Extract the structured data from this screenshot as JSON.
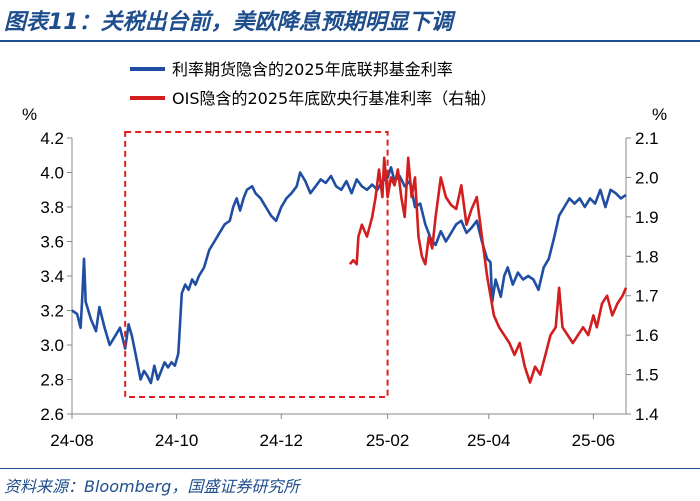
{
  "header": {
    "title": "图表11：关税出台前，美欧降息预期明显下调"
  },
  "footer": {
    "source": "资料来源：Bloomberg，国盛证券研究所"
  },
  "chart_data": {
    "type": "line",
    "y_left_unit": "%",
    "y_right_unit": "%",
    "y_left_lim": [
      2.6,
      4.2
    ],
    "y_right_lim": [
      1.4,
      2.1
    ],
    "y_left_ticks": [
      "2.6",
      "2.8",
      "3.0",
      "3.2",
      "3.4",
      "3.6",
      "3.8",
      "4.0",
      "4.2"
    ],
    "y_right_ticks": [
      "1.4",
      "1.5",
      "1.6",
      "1.7",
      "1.8",
      "1.9",
      "2.0",
      "2.1"
    ],
    "x_lim": [
      "2024-08-01",
      "2025-06-20"
    ],
    "x_ticks": [
      {
        "date": "2024-08-01",
        "label": "24-08"
      },
      {
        "date": "2024-10-01",
        "label": "24-10"
      },
      {
        "date": "2024-12-01",
        "label": "24-12"
      },
      {
        "date": "2025-02-01",
        "label": "25-02"
      },
      {
        "date": "2025-04-01",
        "label": "25-04"
      },
      {
        "date": "2025-06-01",
        "label": "25-06"
      }
    ],
    "highlight_box": {
      "x_start": "2024-09-01",
      "x_end": "2025-02-01",
      "color": "#e02020"
    },
    "series": [
      {
        "name": "利率期货隐含的2025年底联邦基金利率",
        "axis": "left",
        "color": "#1f4ea3",
        "points": [
          [
            "2024-08-01",
            3.2
          ],
          [
            "2024-08-04",
            3.18
          ],
          [
            "2024-08-06",
            3.1
          ],
          [
            "2024-08-07",
            3.28
          ],
          [
            "2024-08-08",
            3.5
          ],
          [
            "2024-08-09",
            3.25
          ],
          [
            "2024-08-12",
            3.15
          ],
          [
            "2024-08-15",
            3.08
          ],
          [
            "2024-08-17",
            3.22
          ],
          [
            "2024-08-20",
            3.1
          ],
          [
            "2024-08-23",
            3.0
          ],
          [
            "2024-08-26",
            3.05
          ],
          [
            "2024-08-29",
            3.1
          ],
          [
            "2024-09-01",
            2.98
          ],
          [
            "2024-09-03",
            3.12
          ],
          [
            "2024-09-05",
            3.05
          ],
          [
            "2024-09-07",
            2.95
          ],
          [
            "2024-09-09",
            2.85
          ],
          [
            "2024-09-10",
            2.8
          ],
          [
            "2024-09-12",
            2.85
          ],
          [
            "2024-09-14",
            2.82
          ],
          [
            "2024-09-16",
            2.78
          ],
          [
            "2024-09-18",
            2.88
          ],
          [
            "2024-09-20",
            2.8
          ],
          [
            "2024-09-22",
            2.85
          ],
          [
            "2024-09-24",
            2.9
          ],
          [
            "2024-09-26",
            2.87
          ],
          [
            "2024-09-28",
            2.9
          ],
          [
            "2024-09-30",
            2.88
          ],
          [
            "2024-10-02",
            2.95
          ],
          [
            "2024-10-04",
            3.3
          ],
          [
            "2024-10-06",
            3.35
          ],
          [
            "2024-10-08",
            3.32
          ],
          [
            "2024-10-10",
            3.38
          ],
          [
            "2024-10-12",
            3.35
          ],
          [
            "2024-10-14",
            3.4
          ],
          [
            "2024-10-17",
            3.45
          ],
          [
            "2024-10-20",
            3.55
          ],
          [
            "2024-10-23",
            3.6
          ],
          [
            "2024-10-26",
            3.65
          ],
          [
            "2024-10-29",
            3.7
          ],
          [
            "2024-11-01",
            3.72
          ],
          [
            "2024-11-03",
            3.8
          ],
          [
            "2024-11-05",
            3.85
          ],
          [
            "2024-11-07",
            3.78
          ],
          [
            "2024-11-09",
            3.85
          ],
          [
            "2024-11-11",
            3.9
          ],
          [
            "2024-11-14",
            3.92
          ],
          [
            "2024-11-16",
            3.88
          ],
          [
            "2024-11-19",
            3.85
          ],
          [
            "2024-11-22",
            3.8
          ],
          [
            "2024-11-25",
            3.75
          ],
          [
            "2024-11-28",
            3.72
          ],
          [
            "2024-12-01",
            3.8
          ],
          [
            "2024-12-04",
            3.85
          ],
          [
            "2024-12-07",
            3.88
          ],
          [
            "2024-12-10",
            3.92
          ],
          [
            "2024-12-12",
            4.0
          ],
          [
            "2024-12-15",
            3.95
          ],
          [
            "2024-12-18",
            3.88
          ],
          [
            "2024-12-21",
            3.92
          ],
          [
            "2024-12-24",
            3.96
          ],
          [
            "2024-12-27",
            3.94
          ],
          [
            "2024-12-30",
            3.98
          ],
          [
            "2025-01-02",
            3.92
          ],
          [
            "2025-01-05",
            3.9
          ],
          [
            "2025-01-08",
            3.95
          ],
          [
            "2025-01-11",
            3.88
          ],
          [
            "2025-01-14",
            3.96
          ],
          [
            "2025-01-17",
            3.92
          ],
          [
            "2025-01-20",
            3.9
          ],
          [
            "2025-01-23",
            3.93
          ],
          [
            "2025-01-26",
            3.9
          ],
          [
            "2025-01-29",
            3.95
          ],
          [
            "2025-02-01",
            3.97
          ],
          [
            "2025-02-03",
            4.03
          ],
          [
            "2025-02-05",
            3.95
          ],
          [
            "2025-02-08",
            3.98
          ],
          [
            "2025-02-11",
            3.92
          ],
          [
            "2025-02-14",
            3.95
          ],
          [
            "2025-02-17",
            3.8
          ],
          [
            "2025-02-20",
            3.82
          ],
          [
            "2025-02-23",
            3.7
          ],
          [
            "2025-02-26",
            3.62
          ],
          [
            "2025-03-01",
            3.58
          ],
          [
            "2025-03-04",
            3.66
          ],
          [
            "2025-03-07",
            3.6
          ],
          [
            "2025-03-10",
            3.65
          ],
          [
            "2025-03-13",
            3.7
          ],
          [
            "2025-03-16",
            3.72
          ],
          [
            "2025-03-19",
            3.65
          ],
          [
            "2025-03-22",
            3.68
          ],
          [
            "2025-03-25",
            3.72
          ],
          [
            "2025-03-28",
            3.6
          ],
          [
            "2025-03-31",
            3.5
          ],
          [
            "2025-04-02",
            3.48
          ],
          [
            "2025-04-03",
            3.25
          ],
          [
            "2025-04-05",
            3.38
          ],
          [
            "2025-04-08",
            3.28
          ],
          [
            "2025-04-10",
            3.4
          ],
          [
            "2025-04-12",
            3.45
          ],
          [
            "2025-04-15",
            3.35
          ],
          [
            "2025-04-18",
            3.42
          ],
          [
            "2025-04-21",
            3.38
          ],
          [
            "2025-04-24",
            3.4
          ],
          [
            "2025-04-27",
            3.38
          ],
          [
            "2025-04-30",
            3.32
          ],
          [
            "2025-05-03",
            3.45
          ],
          [
            "2025-05-06",
            3.5
          ],
          [
            "2025-05-09",
            3.62
          ],
          [
            "2025-05-12",
            3.75
          ],
          [
            "2025-05-15",
            3.8
          ],
          [
            "2025-05-18",
            3.85
          ],
          [
            "2025-05-21",
            3.82
          ],
          [
            "2025-05-24",
            3.85
          ],
          [
            "2025-05-27",
            3.8
          ],
          [
            "2025-05-30",
            3.85
          ],
          [
            "2025-06-02",
            3.82
          ],
          [
            "2025-06-05",
            3.9
          ],
          [
            "2025-06-08",
            3.8
          ],
          [
            "2025-06-11",
            3.9
          ],
          [
            "2025-06-14",
            3.88
          ],
          [
            "2025-06-17",
            3.85
          ],
          [
            "2025-06-20",
            3.87
          ]
        ]
      },
      {
        "name": "OIS隐含的2025年底欧央行基准利率（右轴）",
        "axis": "right",
        "color": "#d21e1e",
        "points": [
          [
            "2025-01-10",
            1.78
          ],
          [
            "2025-01-12",
            1.79
          ],
          [
            "2025-01-14",
            1.78
          ],
          [
            "2025-01-15",
            1.85
          ],
          [
            "2025-01-17",
            1.88
          ],
          [
            "2025-01-20",
            1.85
          ],
          [
            "2025-01-23",
            1.9
          ],
          [
            "2025-01-25",
            1.95
          ],
          [
            "2025-01-27",
            2.02
          ],
          [
            "2025-01-29",
            1.95
          ],
          [
            "2025-01-30",
            2.05
          ],
          [
            "2025-02-01",
            1.95
          ],
          [
            "2025-02-03",
            2.0
          ],
          [
            "2025-02-05",
            1.98
          ],
          [
            "2025-02-07",
            2.02
          ],
          [
            "2025-02-09",
            1.95
          ],
          [
            "2025-02-11",
            1.9
          ],
          [
            "2025-02-13",
            2.05
          ],
          [
            "2025-02-15",
            1.95
          ],
          [
            "2025-02-17",
            2.0
          ],
          [
            "2025-02-19",
            1.85
          ],
          [
            "2025-02-21",
            1.8
          ],
          [
            "2025-02-23",
            1.78
          ],
          [
            "2025-02-25",
            1.85
          ],
          [
            "2025-02-27",
            1.82
          ],
          [
            "2025-03-01",
            1.9
          ],
          [
            "2025-03-04",
            2.0
          ],
          [
            "2025-03-07",
            1.95
          ],
          [
            "2025-03-10",
            1.93
          ],
          [
            "2025-03-13",
            1.92
          ],
          [
            "2025-03-16",
            1.98
          ],
          [
            "2025-03-19",
            1.88
          ],
          [
            "2025-03-22",
            1.92
          ],
          [
            "2025-03-25",
            1.95
          ],
          [
            "2025-03-28",
            1.85
          ],
          [
            "2025-03-31",
            1.75
          ],
          [
            "2025-04-02",
            1.7
          ],
          [
            "2025-04-04",
            1.65
          ],
          [
            "2025-04-07",
            1.62
          ],
          [
            "2025-04-10",
            1.6
          ],
          [
            "2025-04-13",
            1.58
          ],
          [
            "2025-04-16",
            1.55
          ],
          [
            "2025-04-19",
            1.58
          ],
          [
            "2025-04-22",
            1.52
          ],
          [
            "2025-04-25",
            1.48
          ],
          [
            "2025-04-28",
            1.52
          ],
          [
            "2025-05-01",
            1.5
          ],
          [
            "2025-05-04",
            1.55
          ],
          [
            "2025-05-07",
            1.6
          ],
          [
            "2025-05-10",
            1.62
          ],
          [
            "2025-05-12",
            1.72
          ],
          [
            "2025-05-14",
            1.62
          ],
          [
            "2025-05-17",
            1.6
          ],
          [
            "2025-05-20",
            1.58
          ],
          [
            "2025-05-23",
            1.6
          ],
          [
            "2025-05-26",
            1.62
          ],
          [
            "2025-05-29",
            1.6
          ],
          [
            "2025-06-01",
            1.65
          ],
          [
            "2025-06-03",
            1.62
          ],
          [
            "2025-06-06",
            1.68
          ],
          [
            "2025-06-09",
            1.7
          ],
          [
            "2025-06-12",
            1.65
          ],
          [
            "2025-06-15",
            1.68
          ],
          [
            "2025-06-18",
            1.7
          ],
          [
            "2025-06-20",
            1.72
          ]
        ]
      }
    ]
  }
}
